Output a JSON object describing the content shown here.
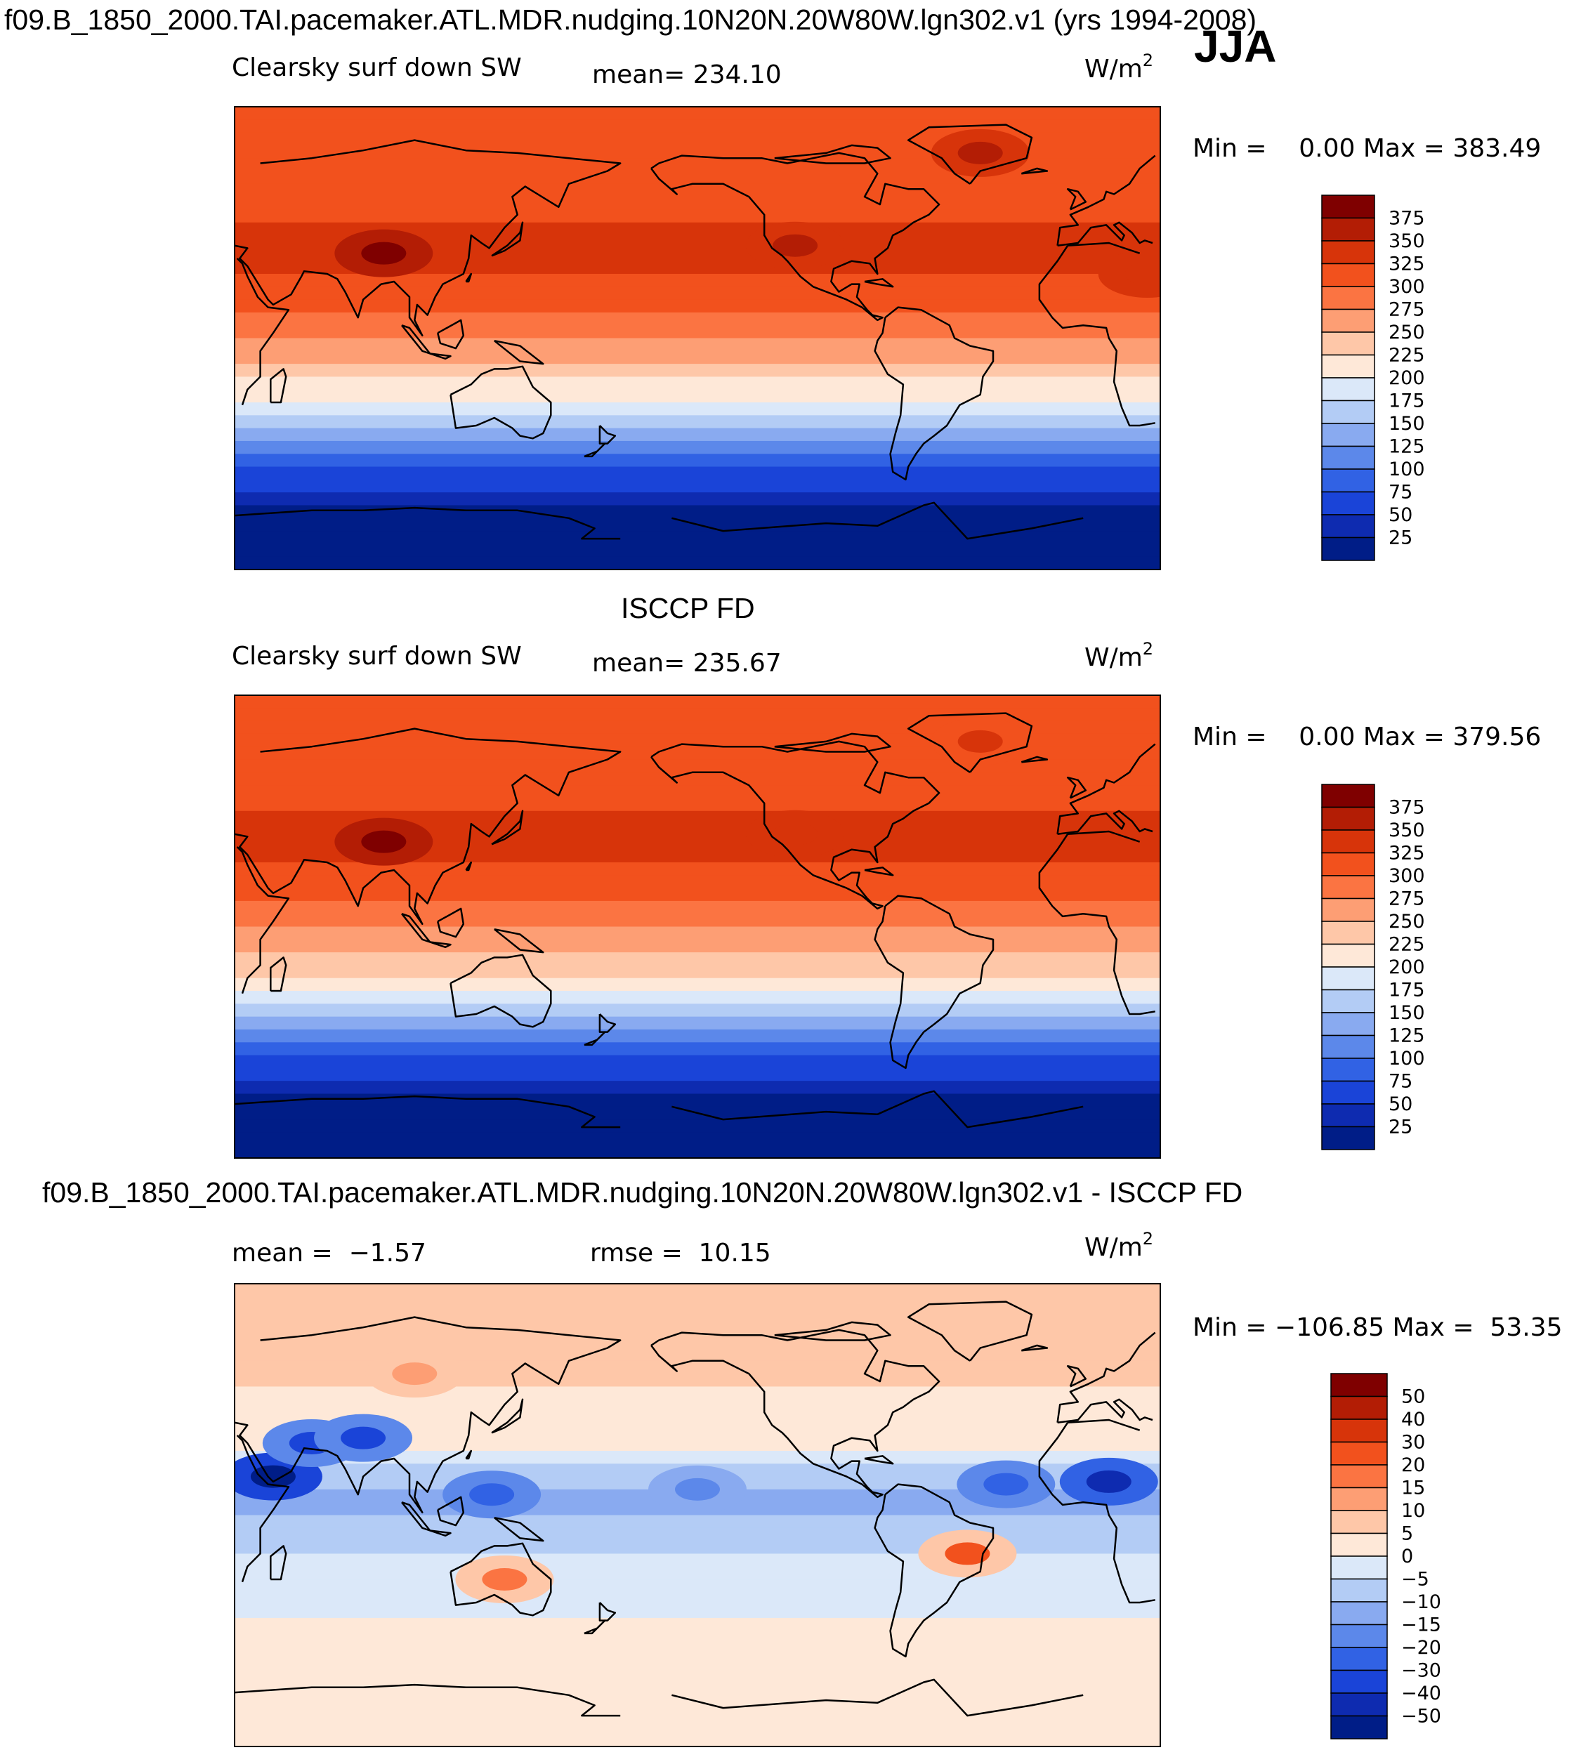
{
  "figure": {
    "title": "f09.B_1850_2000.TAI.pacemaker.ATL.MDR.nudging.10N20N.20W80W.lgn302.v1 (yrs 1994-2008)",
    "season": "JJA"
  },
  "chart_data": [
    {
      "type": "heatmap",
      "name": "model",
      "variable": "Clearsky surf down SW",
      "units": "W/m",
      "units_exp": "2",
      "mean_text": "mean= 234.10",
      "min_max_text": "Min =    0.00 Max = 383.49",
      "min": 0.0,
      "max": 383.49,
      "mean": 234.1,
      "legend_levels": [
        "375",
        "350",
        "325",
        "300",
        "275",
        "250",
        "225",
        "200",
        "175",
        "150",
        "125",
        "100",
        "75",
        "50",
        "25"
      ],
      "legend_colors": [
        "#7f0000",
        "#b31d05",
        "#d7340a",
        "#f2511d",
        "#fb7442",
        "#fd9e74",
        "#fec7a8",
        "#fee8d8",
        "#dbe8f9",
        "#b3ccf5",
        "#89aaf0",
        "#5c88ea",
        "#3162e4",
        "#1a44d8",
        "#0e2bb0",
        "#001d87"
      ],
      "lat_profile_ocean": [
        [
          90,
          302
        ],
        [
          60,
          310
        ],
        [
          40,
          330
        ],
        [
          25,
          325
        ],
        [
          10,
          295
        ],
        [
          0,
          275
        ],
        [
          -10,
          250
        ],
        [
          -20,
          215
        ],
        [
          -30,
          175
        ],
        [
          -40,
          130
        ],
        [
          -50,
          85
        ],
        [
          -60,
          40
        ],
        [
          -70,
          12
        ],
        [
          -90,
          0
        ]
      ],
      "hotspots": [
        {
          "lon": 88,
          "lat": 33,
          "value": 382
        },
        {
          "lon": -112,
          "lat": 36,
          "value": 352
        },
        {
          "lon": 25,
          "lat": 25,
          "value": 345
        },
        {
          "lon": -40,
          "lat": 72,
          "value": 350
        }
      ]
    },
    {
      "type": "heatmap",
      "name": "observations",
      "subtitle": "ISCCP FD",
      "variable": "Clearsky surf down SW",
      "units": "W/m",
      "units_exp": "2",
      "mean_text": "mean= 235.67",
      "min_max_text": "Min =    0.00 Max = 379.56",
      "min": 0.0,
      "max": 379.56,
      "mean": 235.67,
      "legend_levels": [
        "375",
        "350",
        "325",
        "300",
        "275",
        "250",
        "225",
        "200",
        "175",
        "150",
        "125",
        "100",
        "75",
        "50",
        "25"
      ],
      "legend_colors": [
        "#7f0000",
        "#b31d05",
        "#d7340a",
        "#f2511d",
        "#fb7442",
        "#fd9e74",
        "#fec7a8",
        "#fee8d8",
        "#dbe8f9",
        "#b3ccf5",
        "#89aaf0",
        "#5c88ea",
        "#3162e4",
        "#1a44d8",
        "#0e2bb0",
        "#001d87"
      ],
      "lat_profile_ocean": [
        [
          90,
          305
        ],
        [
          60,
          312
        ],
        [
          40,
          332
        ],
        [
          25,
          326
        ],
        [
          10,
          296
        ],
        [
          0,
          276
        ],
        [
          -10,
          252
        ],
        [
          -20,
          217
        ],
        [
          -30,
          177
        ],
        [
          -40,
          132
        ],
        [
          -50,
          86
        ],
        [
          -60,
          41
        ],
        [
          -70,
          12
        ],
        [
          -90,
          0
        ]
      ],
      "hotspots": [
        {
          "lon": 88,
          "lat": 33,
          "value": 378
        },
        {
          "lon": -112,
          "lat": 36,
          "value": 340
        },
        {
          "lon": -40,
          "lat": 72,
          "value": 330
        }
      ]
    },
    {
      "type": "heatmap",
      "name": "difference",
      "subtitle": "f09.B_1850_2000.TAI.pacemaker.ATL.MDR.nudging.10N20N.20W80W.lgn302.v1 - ISCCP FD",
      "units": "W/m",
      "units_exp": "2",
      "mean_text": "mean =  −1.57",
      "rmse_text": "rmse =  10.15",
      "min_max_text": "Min = −106.85 Max =  53.35",
      "min": -106.85,
      "max": 53.35,
      "mean": -1.57,
      "rmse": 10.15,
      "legend_levels": [
        "50",
        "40",
        "30",
        "20",
        "15",
        "10",
        "5",
        "0",
        "−5",
        "−10",
        "−15",
        "−20",
        "−30",
        "−40",
        "−50"
      ],
      "legend_colors": [
        "#7f0000",
        "#b31d05",
        "#d7340a",
        "#f2511d",
        "#fb7442",
        "#fd9e74",
        "#fec7a8",
        "#fee8d8",
        "#dbe8f9",
        "#b3ccf5",
        "#89aaf0",
        "#5c88ea",
        "#3162e4",
        "#1a44d8",
        "#0e2bb0",
        "#001d87"
      ],
      "lat_profile_ocean": [
        [
          90,
          8
        ],
        [
          60,
          7
        ],
        [
          45,
          4
        ],
        [
          30,
          2
        ],
        [
          20,
          -4
        ],
        [
          10,
          -10
        ],
        [
          0,
          -11
        ],
        [
          -10,
          -7
        ],
        [
          -20,
          -3
        ],
        [
          -30,
          -2
        ],
        [
          -45,
          1
        ],
        [
          -60,
          3
        ],
        [
          -75,
          2
        ],
        [
          -90,
          1
        ]
      ],
      "hotspots": [
        {
          "lon": 10,
          "lat": 13,
          "value": -45
        },
        {
          "lon": 45,
          "lat": 15,
          "value": -55
        },
        {
          "lon": 60,
          "lat": 28,
          "value": -40
        },
        {
          "lon": 80,
          "lat": 30,
          "value": -35
        },
        {
          "lon": -30,
          "lat": 12,
          "value": -30
        },
        {
          "lon": 130,
          "lat": 8,
          "value": -25
        },
        {
          "lon": 135,
          "lat": -25,
          "value": 18
        },
        {
          "lon": -45,
          "lat": -15,
          "value": 20
        },
        {
          "lon": 100,
          "lat": 55,
          "value": 12
        },
        {
          "lon": -150,
          "lat": 10,
          "value": -18
        }
      ]
    }
  ]
}
